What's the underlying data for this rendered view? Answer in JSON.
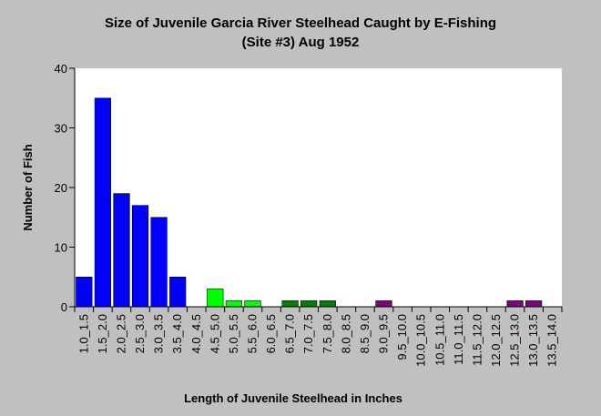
{
  "chart_data": {
    "type": "bar",
    "title": "Size of Juvenile Garcia River Steelhead Caught by E-Fishing",
    "subtitle": "(Site #3) Aug 1952",
    "xlabel": "Length of Juvenile Steelhead in Inches",
    "ylabel": "Number of Fish",
    "ylim": [
      0,
      40
    ],
    "yticks": [
      0,
      10,
      20,
      30,
      40
    ],
    "grid": false,
    "legend": "none",
    "categories": [
      "1.0_1.5",
      "1.5_2.0",
      "2.0_2.5",
      "2.5_3.0",
      "3.0_3.5",
      "3.5_4.0",
      "4.0_4.5",
      "4.5_5.0",
      "5.0_5.5",
      "5.5_6.0",
      "6.0_6.5",
      "6.5_7.0",
      "7.0_7.5",
      "7.5_8.0",
      "8.0_8.5",
      "8.5_9.0",
      "9.0_9.5",
      "9.5_10.0",
      "10.0_10.5",
      "10.5_11.0",
      "11.0_11.5",
      "11.5_12.0",
      "12.0_12.5",
      "12.5_13.0",
      "13.0_13.5",
      "13.5_14.0"
    ],
    "values": [
      5,
      35,
      19,
      17,
      15,
      5,
      0,
      3,
      1,
      1,
      0,
      1,
      1,
      1,
      0,
      0,
      1,
      0,
      0,
      0,
      0,
      0,
      0,
      1,
      1,
      0
    ],
    "bar_colors": [
      "#0000ff",
      "#0000ff",
      "#0000ff",
      "#0000ff",
      "#0000ff",
      "#0000ff",
      "#0000ff",
      "#00ff00",
      "#00ff00",
      "#00ff00",
      "#00ff00",
      "#008000",
      "#008000",
      "#008000",
      "#008000",
      "#008000",
      "#800080",
      "#800080",
      "#800080",
      "#800080",
      "#800080",
      "#800080",
      "#800080",
      "#800080",
      "#800080",
      "#800080"
    ]
  },
  "colors": {
    "background": "#c0c0c0",
    "plot_background": "#ffffff",
    "axis": "#000000"
  }
}
